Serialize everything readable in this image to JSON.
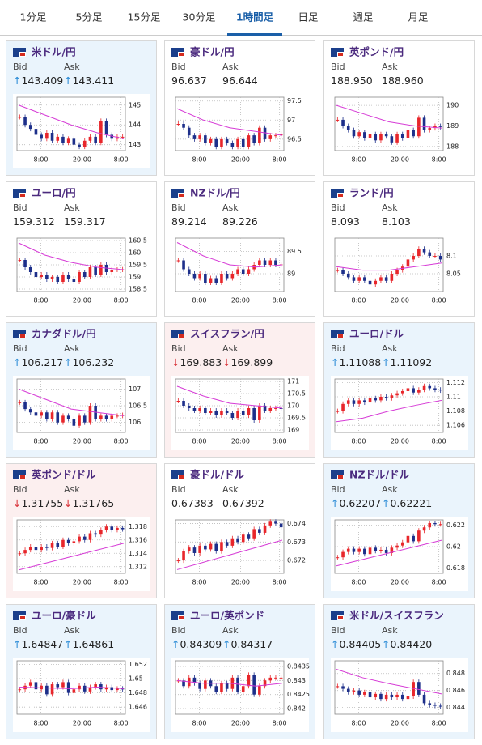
{
  "tabs": [
    "1分足",
    "5分足",
    "15分足",
    "30分足",
    "1時間足",
    "日足",
    "週足",
    "月足"
  ],
  "active_tab": 4,
  "labels": {
    "bid": "Bid",
    "ask": "Ask"
  },
  "xlabels": [
    "8:00",
    "20:00",
    "8:00"
  ],
  "cards": [
    {
      "name": "米ドル/円",
      "arrow": "↑",
      "trend": "up",
      "bid": "143.409",
      "ask": "143.411",
      "chart": {
        "ylim": [
          142.7,
          145.4
        ],
        "yticks": [
          143,
          144,
          145
        ],
        "closes": [
          144.4,
          144.0,
          143.8,
          143.5,
          143.3,
          143.6,
          143.2,
          143.4,
          143.1,
          143.3,
          143.0,
          142.9,
          143.2,
          143.4,
          143.1,
          144.2,
          143.5,
          143.3,
          143.4,
          143.4
        ],
        "ma": [
          145,
          144.5,
          144.0,
          143.6,
          143.3
        ]
      }
    },
    {
      "name": "豪ドル/円",
      "trend": "none",
      "bid": "96.637",
      "ask": "96.644",
      "chart": {
        "ylim": [
          96.2,
          97.6
        ],
        "yticks": [
          96.5,
          97,
          97.5
        ],
        "closes": [
          96.9,
          96.8,
          96.6,
          96.5,
          96.6,
          96.4,
          96.5,
          96.3,
          96.5,
          96.4,
          96.3,
          96.5,
          96.3,
          96.6,
          96.4,
          96.8,
          96.5,
          96.6,
          96.6,
          96.64
        ],
        "ma": [
          97.3,
          97.0,
          96.8,
          96.7,
          96.6
        ]
      }
    },
    {
      "name": "英ポンド/円",
      "trend": "none",
      "bid": "188.950",
      "ask": "188.960",
      "chart": {
        "ylim": [
          187.8,
          190.4
        ],
        "yticks": [
          188,
          189,
          190
        ],
        "closes": [
          189.3,
          189,
          188.8,
          188.5,
          188.7,
          188.4,
          188.6,
          188.3,
          188.6,
          188.5,
          188.2,
          188.6,
          188.4,
          188.8,
          188.5,
          189.4,
          188.8,
          188.9,
          189,
          188.95
        ],
        "ma": [
          190,
          189.6,
          189.2,
          189,
          188.9
        ]
      }
    },
    {
      "name": "ユーロ/円",
      "trend": "none",
      "bid": "159.312",
      "ask": "159.317",
      "chart": {
        "ylim": [
          158.4,
          160.6
        ],
        "yticks": [
          158.5,
          159,
          159.5,
          160,
          160.5
        ],
        "closes": [
          159.7,
          159.4,
          159.2,
          159,
          159.1,
          158.9,
          159.0,
          158.8,
          159.1,
          158.9,
          158.8,
          159.2,
          159.0,
          159.4,
          159.1,
          159.5,
          159.2,
          159.3,
          159.3,
          159.31
        ],
        "ma": [
          160.4,
          159.9,
          159.6,
          159.4,
          159.3
        ]
      }
    },
    {
      "name": "NZドル/円",
      "trend": "none",
      "bid": "89.214",
      "ask": "89.226",
      "chart": {
        "ylim": [
          88.6,
          89.8
        ],
        "yticks": [
          89,
          89.5
        ],
        "closes": [
          89.3,
          89.1,
          89,
          88.9,
          89,
          88.8,
          88.9,
          88.8,
          89.0,
          88.9,
          89.0,
          89.1,
          89.0,
          89.1,
          89.2,
          89.3,
          89.2,
          89.3,
          89.2,
          89.21
        ],
        "ma": [
          89.7,
          89.4,
          89.2,
          89.15,
          89.2
        ]
      }
    },
    {
      "name": "ランド/円",
      "trend": "none",
      "bid": "8.093",
      "ask": "8.103",
      "chart": {
        "ylim": [
          8.0,
          8.15
        ],
        "yticks": [
          8.05,
          8.1
        ],
        "closes": [
          8.06,
          8.05,
          8.04,
          8.03,
          8.04,
          8.03,
          8.02,
          8.03,
          8.04,
          8.03,
          8.05,
          8.06,
          8.07,
          8.09,
          8.1,
          8.12,
          8.11,
          8.1,
          8.1,
          8.09
        ],
        "ma": [
          8.07,
          8.06,
          8.06,
          8.07,
          8.08
        ]
      }
    },
    {
      "name": "カナダドル/円",
      "arrow": "↑",
      "trend": "up",
      "bid": "106.217",
      "ask": "106.232",
      "chart": {
        "ylim": [
          105.7,
          107.3
        ],
        "yticks": [
          106,
          106.5,
          107
        ],
        "closes": [
          106.6,
          106.4,
          106.3,
          106.2,
          106.3,
          106.1,
          106.3,
          106.0,
          106.2,
          106.1,
          105.9,
          106.2,
          106.0,
          106.5,
          106.1,
          106.2,
          106.1,
          106.2,
          106.2,
          106.22
        ],
        "ma": [
          107,
          106.7,
          106.4,
          106.3,
          106.2
        ]
      }
    },
    {
      "name": "スイスフラン/円",
      "arrow": "↓",
      "trend": "down",
      "bid": "169.883",
      "ask": "169.899",
      "chart": {
        "ylim": [
          168.9,
          171.1
        ],
        "yticks": [
          169,
          169.5,
          170,
          170.5,
          171
        ],
        "closes": [
          170.2,
          170.0,
          169.9,
          169.8,
          169.9,
          169.7,
          169.8,
          169.6,
          169.8,
          169.7,
          169.5,
          169.8,
          169.6,
          169.9,
          169.4,
          170.0,
          169.8,
          169.9,
          169.9,
          169.88
        ],
        "ma": [
          170.8,
          170.4,
          170.1,
          170.0,
          169.9
        ]
      }
    },
    {
      "name": "ユーロ/ドル",
      "arrow": "↑",
      "trend": "up",
      "bid": "1.11088",
      "ask": "1.11092",
      "chart": {
        "ylim": [
          1.105,
          1.1125
        ],
        "yticks": [
          1.106,
          1.108,
          1.11,
          1.112
        ],
        "closes": [
          1.108,
          1.109,
          1.1095,
          1.109,
          1.1095,
          1.1092,
          1.1098,
          1.1095,
          1.11,
          1.1098,
          1.1102,
          1.1105,
          1.1108,
          1.1112,
          1.1106,
          1.111,
          1.1115,
          1.1112,
          1.111,
          1.1109
        ],
        "ma": [
          1.1065,
          1.107,
          1.108,
          1.1088,
          1.1095
        ]
      }
    },
    {
      "name": "英ポンド/ドル",
      "arrow": "↓",
      "trend": "down",
      "bid": "1.31755",
      "ask": "1.31765",
      "chart": {
        "ylim": [
          1.311,
          1.319
        ],
        "yticks": [
          1.312,
          1.314,
          1.316,
          1.318
        ],
        "closes": [
          1.314,
          1.3145,
          1.315,
          1.3145,
          1.315,
          1.3148,
          1.3155,
          1.315,
          1.316,
          1.3155,
          1.3158,
          1.3165,
          1.316,
          1.317,
          1.3168,
          1.3175,
          1.318,
          1.3175,
          1.3178,
          1.3176
        ],
        "ma": [
          1.3115,
          1.3125,
          1.3135,
          1.3145,
          1.3155
        ]
      }
    },
    {
      "name": "豪ドル/ドル",
      "trend": "none",
      "bid": "0.67383",
      "ask": "0.67392",
      "chart": {
        "ylim": [
          0.6713,
          0.6742
        ],
        "yticks": [
          0.672,
          0.673,
          0.674
        ],
        "closes": [
          0.672,
          0.6725,
          0.6727,
          0.6724,
          0.6728,
          0.6726,
          0.6729,
          0.6725,
          0.673,
          0.6728,
          0.6732,
          0.673,
          0.6734,
          0.6732,
          0.6737,
          0.6735,
          0.6739,
          0.6741,
          0.674,
          0.6738
        ],
        "ma": [
          0.6715,
          0.6719,
          0.6723,
          0.6727,
          0.6731
        ]
      }
    },
    {
      "name": "NZドル/ドル",
      "arrow": "↑",
      "trend": "up",
      "bid": "0.62207",
      "ask": "0.62221",
      "chart": {
        "ylim": [
          0.6175,
          0.6225
        ],
        "yticks": [
          0.618,
          0.62,
          0.622
        ],
        "closes": [
          0.619,
          0.6195,
          0.6198,
          0.6195,
          0.6198,
          0.6193,
          0.6199,
          0.6196,
          0.6197,
          0.6194,
          0.6199,
          0.6201,
          0.6204,
          0.621,
          0.6205,
          0.6215,
          0.6218,
          0.6222,
          0.6221,
          0.6221
        ],
        "ma": [
          0.6182,
          0.6188,
          0.6194,
          0.62,
          0.6206
        ]
      }
    },
    {
      "name": "ユーロ/豪ドル",
      "arrow": "↑",
      "trend": "up",
      "bid": "1.64847",
      "ask": "1.64861",
      "chart": {
        "ylim": [
          1.645,
          1.6525
        ],
        "yticks": [
          1.646,
          1.648,
          1.65,
          1.652
        ],
        "closes": [
          1.6485,
          1.649,
          1.6495,
          1.6485,
          1.649,
          1.6478,
          1.6492,
          1.6488,
          1.6495,
          1.648,
          1.6485,
          1.649,
          1.6482,
          1.6488,
          1.6492,
          1.6485,
          1.6488,
          1.6484,
          1.6486,
          1.6485
        ],
        "ma": [
          1.6488,
          1.6487,
          1.6486,
          1.6488,
          1.6486
        ]
      }
    },
    {
      "name": "ユーロ/英ポンド",
      "arrow": "↑",
      "trend": "up",
      "bid": "0.84309",
      "ask": "0.84317",
      "chart": {
        "ylim": [
          0.8418,
          0.8437
        ],
        "yticks": [
          0.842,
          0.8425,
          0.843,
          0.8435
        ],
        "closes": [
          0.843,
          0.8428,
          0.8431,
          0.8429,
          0.8427,
          0.843,
          0.8428,
          0.8426,
          0.8429,
          0.8427,
          0.8431,
          0.8426,
          0.8428,
          0.8432,
          0.8425,
          0.8428,
          0.843,
          0.8431,
          0.8431,
          0.8431
        ],
        "ma": [
          0.843,
          0.8429,
          0.8429,
          0.8428,
          0.8429
        ]
      }
    },
    {
      "name": "米ドル/スイスフラン",
      "arrow": "↑",
      "trend": "up",
      "bid": "0.84405",
      "ask": "0.84420",
      "chart": {
        "ylim": [
          0.8432,
          0.8495
        ],
        "yticks": [
          0.844,
          0.846,
          0.848
        ],
        "closes": [
          0.8465,
          0.8462,
          0.8458,
          0.846,
          0.8455,
          0.8458,
          0.8452,
          0.8456,
          0.845,
          0.8455,
          0.8452,
          0.8455,
          0.845,
          0.8453,
          0.847,
          0.8455,
          0.8445,
          0.8443,
          0.8442,
          0.8441
        ],
        "ma": [
          0.8485,
          0.8475,
          0.8468,
          0.8462,
          0.8456
        ]
      }
    }
  ]
}
